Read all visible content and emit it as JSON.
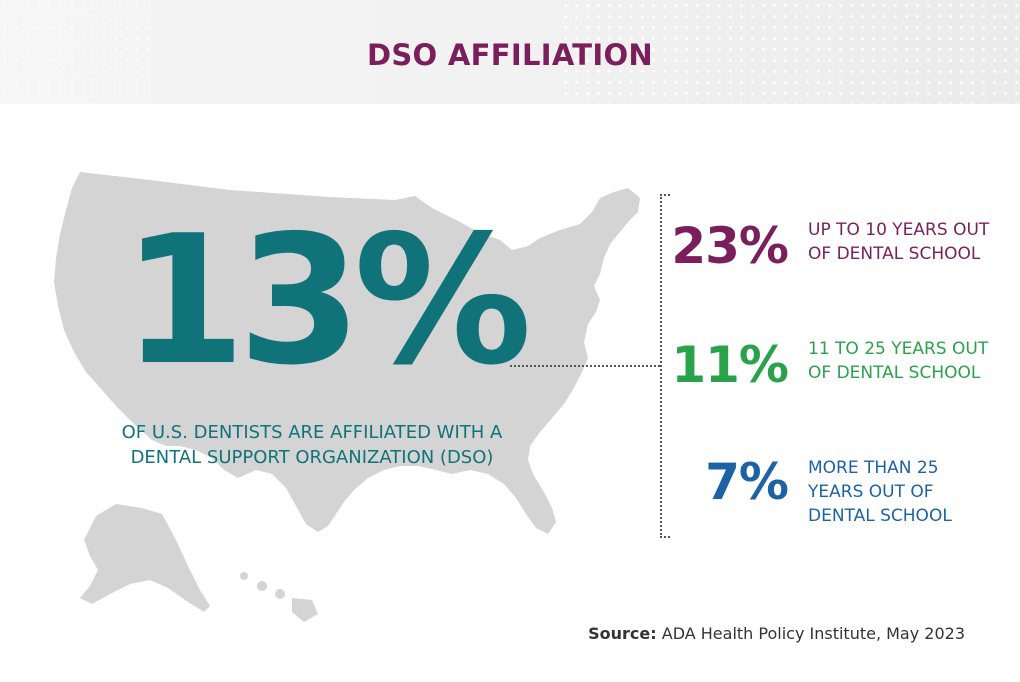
{
  "title": "DSO AFFILIATION",
  "headline": {
    "value": "13%",
    "caption": "OF U.S. DENTISTS ARE AFFILIATED WITH A DENTAL SUPPORT ORGANIZATION (DSO)",
    "color": "#11737a"
  },
  "breakdown": [
    {
      "value": "23%",
      "label": "UP TO 10 YEARS OUT OF DENTAL SCHOOL",
      "color": "#7a1f5c"
    },
    {
      "value": "11%",
      "label": "11 TO 25 YEARS OUT OF DENTAL SCHOOL",
      "color": "#2aa24a"
    },
    {
      "value": "7%",
      "label": "MORE THAN 25 YEARS OUT OF DENTAL SCHOOL",
      "color": "#1e62a6"
    }
  ],
  "source": {
    "key": "Source:",
    "text": "ADA Health Policy Institute, May 2023"
  },
  "colors": {
    "map": "#d4d4d4",
    "title": "#7a1f5c"
  }
}
